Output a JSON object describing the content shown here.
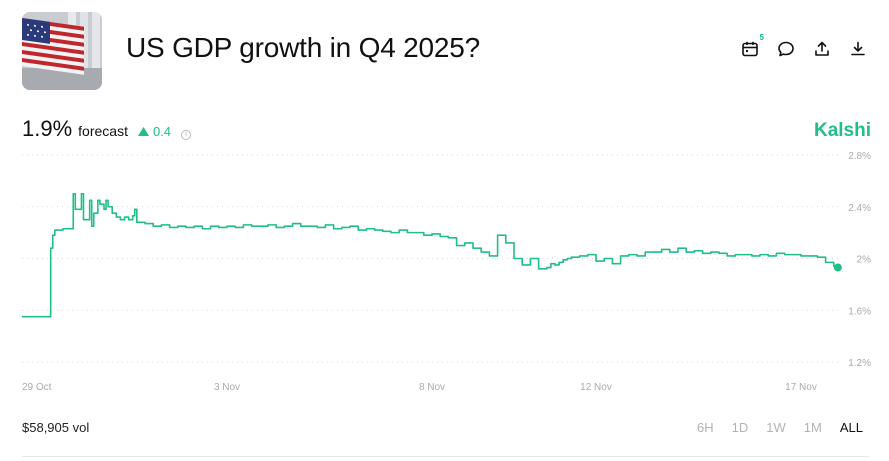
{
  "market": {
    "title": "US GDP growth in Q4 2025?",
    "brand": "Kalshi"
  },
  "actions": {
    "calendar_badge": "5",
    "icons": [
      "calendar-icon",
      "comment-icon",
      "share-icon",
      "download-icon"
    ]
  },
  "forecast": {
    "value": "1.9%",
    "label": "forecast",
    "change": "0.4",
    "change_direction": "up",
    "accent": "#1fbf86"
  },
  "volume": "$58,905 vol",
  "ranges": [
    "6H",
    "1D",
    "1W",
    "1M",
    "ALL"
  ],
  "selected_range": "ALL",
  "chart_data": {
    "type": "line",
    "y_tick_labels": [
      "2.8%",
      "2.4%",
      "2%",
      "1.6%",
      "1.2%"
    ],
    "y_ticks": [
      2.8,
      2.4,
      2.0,
      1.6,
      1.2
    ],
    "ylim": [
      1.2,
      2.8
    ],
    "x_tick_labels": [
      "29 Oct",
      "3 Nov",
      "8 Nov",
      "12 Nov",
      "17 Nov"
    ],
    "x_tick_days": [
      0,
      5,
      10,
      14,
      19
    ],
    "xlim_days": [
      0,
      20
    ],
    "grid": true,
    "line_color": "#1fbf86",
    "series": [
      {
        "x": [
          0,
          0.7,
          0.7,
          0.75,
          0.8,
          0.9,
          1.0,
          1.2,
          1.25,
          1.3,
          1.45,
          1.5,
          1.65,
          1.7,
          1.75,
          1.85,
          1.9,
          2.0,
          2.05,
          2.1,
          2.2,
          2.3,
          2.4,
          2.5,
          2.6,
          2.7,
          2.75,
          2.8,
          3.0,
          3.2,
          3.4,
          3.6,
          3.8,
          4.0,
          4.2,
          4.4,
          4.6,
          4.8,
          5.0,
          5.2,
          5.4,
          5.6,
          5.8,
          6.0,
          6.2,
          6.4,
          6.6,
          6.8,
          7.0,
          7.2,
          7.4,
          7.6,
          7.8,
          8.0,
          8.2,
          8.4,
          8.6,
          8.8,
          9.0,
          9.2,
          9.4,
          9.6,
          9.8,
          10.0,
          10.2,
          10.4,
          10.6,
          10.8,
          11.0,
          11.2,
          11.4,
          11.6,
          11.8,
          12.0,
          12.2,
          12.4,
          12.6,
          12.8,
          12.9,
          13.0,
          13.1,
          13.2,
          13.3,
          13.4,
          13.6,
          13.8,
          14.0,
          14.2,
          14.4,
          14.6,
          14.8,
          15.0,
          15.2,
          15.4,
          15.6,
          15.8,
          16.0,
          16.2,
          16.4,
          16.6,
          16.8,
          17.0,
          17.2,
          17.4,
          17.6,
          17.8,
          18.0,
          18.2,
          18.4,
          18.6,
          18.8,
          19.0,
          19.2,
          19.4,
          19.6,
          19.8,
          19.9
        ],
        "y": [
          1.55,
          1.55,
          2.08,
          2.18,
          2.22,
          2.22,
          2.23,
          2.23,
          2.5,
          2.38,
          2.5,
          2.3,
          2.45,
          2.25,
          2.35,
          2.45,
          2.42,
          2.38,
          2.45,
          2.4,
          2.35,
          2.32,
          2.3,
          2.32,
          2.3,
          2.33,
          2.38,
          2.28,
          2.27,
          2.25,
          2.26,
          2.24,
          2.25,
          2.24,
          2.25,
          2.23,
          2.25,
          2.24,
          2.25,
          2.24,
          2.26,
          2.25,
          2.25,
          2.26,
          2.24,
          2.25,
          2.27,
          2.25,
          2.25,
          2.24,
          2.26,
          2.23,
          2.24,
          2.25,
          2.22,
          2.23,
          2.22,
          2.21,
          2.2,
          2.22,
          2.2,
          2.2,
          2.18,
          2.19,
          2.17,
          2.16,
          2.1,
          2.12,
          2.08,
          2.05,
          2.02,
          2.18,
          2.12,
          2.0,
          1.95,
          2.0,
          1.92,
          1.93,
          1.96,
          1.95,
          1.97,
          1.99,
          2.0,
          2.01,
          2.02,
          2.03,
          1.98,
          2.0,
          1.96,
          2.02,
          2.03,
          2.02,
          2.05,
          2.05,
          2.07,
          2.05,
          2.08,
          2.05,
          2.06,
          2.04,
          2.05,
          2.04,
          2.02,
          2.03,
          2.03,
          2.02,
          2.03,
          2.02,
          2.04,
          2.03,
          2.03,
          2.02,
          2.02,
          2.01,
          1.97,
          1.94,
          1.93
        ]
      }
    ]
  }
}
